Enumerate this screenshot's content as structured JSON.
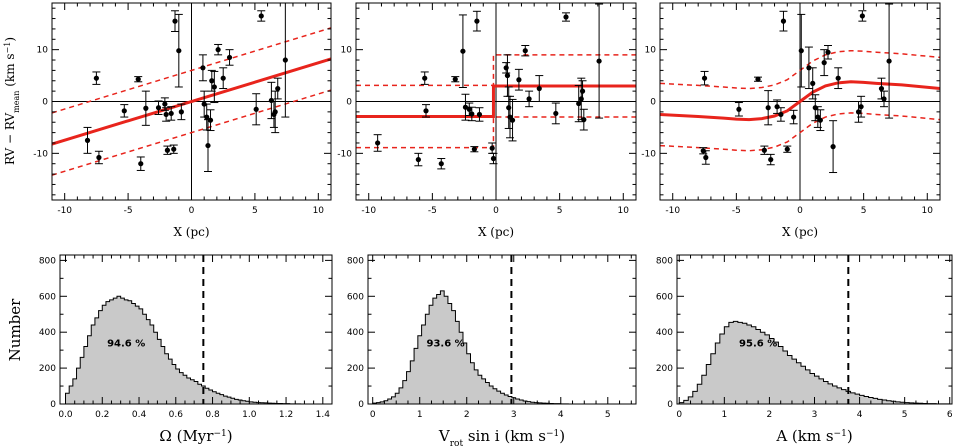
{
  "chart_data": [
    {
      "type": "scatter",
      "panel": "top-left",
      "xlabel": "X (pc)",
      "ylabel_main": "RV − RV",
      "ylabel_sub": "mean",
      "ylabel_unit_pre": " (km s",
      "ylabel_unit_sup": "−1",
      "ylabel_unit_post": ")",
      "xlim": [
        -11,
        11
      ],
      "ylim": [
        -19,
        19
      ],
      "xticks": [
        -10,
        -5,
        0,
        5,
        10
      ],
      "yticks": [
        -10,
        0,
        10
      ],
      "model": "linear",
      "model_x": [
        -11,
        11
      ],
      "model_y": [
        -8.2,
        8.2
      ],
      "band_offset": 6,
      "points": [
        {
          "x": -8.2,
          "y": -7.5,
          "err": 2.5
        },
        {
          "x": -7.5,
          "y": 4.5,
          "err": 1.2
        },
        {
          "x": -7.3,
          "y": -10.8,
          "err": 1.2
        },
        {
          "x": -5.3,
          "y": -1.8,
          "err": 1.2
        },
        {
          "x": -4.2,
          "y": 4.3,
          "err": 0.5
        },
        {
          "x": -4.0,
          "y": -12.0,
          "err": 1.3
        },
        {
          "x": -3.6,
          "y": -1.3,
          "err": 3.3
        },
        {
          "x": -2.6,
          "y": -1.2,
          "err": 1.3
        },
        {
          "x": -2.1,
          "y": -0.5,
          "err": 1.2
        },
        {
          "x": -2.0,
          "y": -2.5,
          "err": 1.3
        },
        {
          "x": -1.9,
          "y": -9.4,
          "err": 0.8
        },
        {
          "x": -1.6,
          "y": -2.3,
          "err": 1.3
        },
        {
          "x": -1.4,
          "y": -9.2,
          "err": 0.8
        },
        {
          "x": -1.3,
          "y": 15.5,
          "err": 2.0
        },
        {
          "x": -1.0,
          "y": 9.8,
          "err": 7.0
        },
        {
          "x": -0.8,
          "y": -2.0,
          "err": 1.5
        },
        {
          "x": 0.9,
          "y": 6.5,
          "err": 2.5
        },
        {
          "x": 1.0,
          "y": -0.5,
          "err": 2.5
        },
        {
          "x": 1.2,
          "y": -3.0,
          "err": 2.5
        },
        {
          "x": 1.3,
          "y": -8.5,
          "err": 5.0
        },
        {
          "x": 1.5,
          "y": -3.6,
          "err": 2.0
        },
        {
          "x": 1.6,
          "y": 4.0,
          "err": 2.0
        },
        {
          "x": 1.8,
          "y": 2.8,
          "err": 3.0
        },
        {
          "x": 2.1,
          "y": 10.0,
          "err": 1.0
        },
        {
          "x": 2.5,
          "y": 4.5,
          "err": 2.0
        },
        {
          "x": 3.0,
          "y": 8.5,
          "err": 1.5
        },
        {
          "x": 5.1,
          "y": -1.5,
          "err": 3.0
        },
        {
          "x": 5.5,
          "y": 16.5,
          "err": 1.0
        },
        {
          "x": 6.3,
          "y": 0.2,
          "err": 3.5
        },
        {
          "x": 6.5,
          "y": -2.5,
          "err": 2.5
        },
        {
          "x": 6.6,
          "y": -2.0,
          "err": 4.0
        },
        {
          "x": 6.8,
          "y": 2.5,
          "err": 2.0
        },
        {
          "x": 7.4,
          "y": 8.0,
          "err": 11.0
        }
      ]
    },
    {
      "type": "scatter",
      "panel": "top-middle",
      "xlabel": "X (pc)",
      "xlim": [
        -11,
        11
      ],
      "ylim": [
        -19,
        19
      ],
      "xticks": [
        -10,
        -5,
        0,
        5,
        10
      ],
      "yticks": [
        -10,
        0,
        10
      ],
      "model": "step",
      "step_low": -2.9,
      "step_high": 3.0,
      "step_x": -0.2,
      "band_offset": 6,
      "points": [
        {
          "x": -9.3,
          "y": -8.0,
          "err": 1.6
        },
        {
          "x": -6.1,
          "y": -11.2,
          "err": 1.2
        },
        {
          "x": -5.6,
          "y": 4.5,
          "err": 1.2
        },
        {
          "x": -5.5,
          "y": -1.8,
          "err": 1.2
        },
        {
          "x": -4.3,
          "y": -12.0,
          "err": 1.0
        },
        {
          "x": -3.2,
          "y": 4.3,
          "err": 0.5
        },
        {
          "x": -2.6,
          "y": 9.7,
          "err": 7.0
        },
        {
          "x": -2.4,
          "y": -1.1,
          "err": 2.5
        },
        {
          "x": -2.1,
          "y": -1.5,
          "err": 1.2
        },
        {
          "x": -1.9,
          "y": -2.4,
          "err": 1.3
        },
        {
          "x": -1.7,
          "y": -9.2,
          "err": 0.5
        },
        {
          "x": -1.5,
          "y": 15.5,
          "err": 1.9
        },
        {
          "x": -1.3,
          "y": -2.5,
          "err": 1.3
        },
        {
          "x": -0.3,
          "y": -9.0,
          "err": 1.0
        },
        {
          "x": -0.2,
          "y": -11.0,
          "err": 1.0
        },
        {
          "x": 0.8,
          "y": 6.5,
          "err": 1.0
        },
        {
          "x": 0.9,
          "y": 5.0,
          "err": 4.0
        },
        {
          "x": 1.0,
          "y": -1.2,
          "err": 4.0
        },
        {
          "x": 1.1,
          "y": -3.0,
          "err": 4.0
        },
        {
          "x": 1.3,
          "y": -3.6,
          "err": 4.0
        },
        {
          "x": 1.8,
          "y": 4.2,
          "err": 2.0
        },
        {
          "x": 2.3,
          "y": 9.8,
          "err": 1.0
        },
        {
          "x": 2.6,
          "y": 0.5,
          "err": 1.5
        },
        {
          "x": 3.4,
          "y": 2.5,
          "err": 2.5
        },
        {
          "x": 4.7,
          "y": -2.3,
          "err": 2.0
        },
        {
          "x": 5.5,
          "y": 16.3,
          "err": 0.8
        },
        {
          "x": 6.5,
          "y": -0.4,
          "err": 3.5
        },
        {
          "x": 6.7,
          "y": 0.5,
          "err": 4.0
        },
        {
          "x": 6.8,
          "y": 2.0,
          "err": 2.0
        },
        {
          "x": 6.9,
          "y": -3.5,
          "err": 2.0
        },
        {
          "x": 8.1,
          "y": 7.8,
          "err": 11.0
        }
      ]
    },
    {
      "type": "scatter",
      "panel": "top-right",
      "xlabel": "X (pc)",
      "xlim": [
        -11,
        11
      ],
      "ylim": [
        -19,
        19
      ],
      "xticks": [
        -10,
        -5,
        0,
        5,
        10
      ],
      "yticks": [
        -10,
        0,
        10
      ],
      "model": "curve",
      "model_x": [
        -11,
        -8,
        -6,
        -5,
        -4,
        -3,
        -2,
        -1,
        0,
        1,
        2,
        3,
        4,
        5,
        6,
        8,
        11
      ],
      "model_y": [
        -2.5,
        -2.9,
        -3.2,
        -3.4,
        -3.5,
        -3.3,
        -2.8,
        -1.8,
        0.0,
        1.8,
        3.0,
        3.6,
        3.8,
        3.7,
        3.5,
        3.2,
        2.5
      ],
      "band_offset": 6,
      "points": [
        {
          "x": -7.5,
          "y": 4.5,
          "err": 1.3
        },
        {
          "x": -7.4,
          "y": -10.8,
          "err": 1.3
        },
        {
          "x": -7.6,
          "y": -9.5,
          "err": 0.6
        },
        {
          "x": -4.8,
          "y": -1.5,
          "err": 1.3
        },
        {
          "x": -3.3,
          "y": 4.3,
          "err": 0.4
        },
        {
          "x": -2.8,
          "y": -9.4,
          "err": 0.8
        },
        {
          "x": -2.5,
          "y": -1.2,
          "err": 3.3
        },
        {
          "x": -2.3,
          "y": -11.2,
          "err": 1.0
        },
        {
          "x": -1.8,
          "y": -1.0,
          "err": 1.3
        },
        {
          "x": -1.5,
          "y": -2.5,
          "err": 1.3
        },
        {
          "x": -1.3,
          "y": 15.5,
          "err": 1.9
        },
        {
          "x": -1.0,
          "y": -9.2,
          "err": 0.6
        },
        {
          "x": -0.5,
          "y": -3.0,
          "err": 1.3
        },
        {
          "x": 0.1,
          "y": 9.8,
          "err": 7.0
        },
        {
          "x": 0.7,
          "y": 6.5,
          "err": 4.0
        },
        {
          "x": 1.0,
          "y": 3.5,
          "err": 3.0
        },
        {
          "x": 1.2,
          "y": -1.2,
          "err": 2.5
        },
        {
          "x": 1.4,
          "y": -3.0,
          "err": 2.0
        },
        {
          "x": 1.6,
          "y": -3.6,
          "err": 2.0
        },
        {
          "x": 1.9,
          "y": 7.5,
          "err": 2.5
        },
        {
          "x": 2.2,
          "y": 9.5,
          "err": 1.3
        },
        {
          "x": 2.6,
          "y": -8.7,
          "err": 5.0
        },
        {
          "x": 3.0,
          "y": 4.5,
          "err": 2.0
        },
        {
          "x": 4.6,
          "y": -2.0,
          "err": 2.0
        },
        {
          "x": 4.8,
          "y": -1.0,
          "err": 2.0
        },
        {
          "x": 4.9,
          "y": 16.5,
          "err": 1.0
        },
        {
          "x": 6.4,
          "y": 2.5,
          "err": 2.0
        },
        {
          "x": 6.6,
          "y": 0.5,
          "err": 1.5
        },
        {
          "x": 7.0,
          "y": 7.8,
          "err": 11.0
        }
      ]
    },
    {
      "type": "histogram",
      "panel": "bottom-left",
      "ylabel": "Number",
      "xlabel_text": "Ω (Myr",
      "xlabel_sup": "−1",
      "xlabel_post": ")",
      "xlim": [
        -0.03,
        1.45
      ],
      "ylim": [
        0,
        830
      ],
      "xticks": [
        0.0,
        0.2,
        0.4,
        0.6,
        0.8,
        1.0,
        1.2,
        1.4
      ],
      "xtick_labels": [
        "0.0",
        "0.2",
        "0.4",
        "0.6",
        "0.8",
        "1.0",
        "1.2",
        "1.4"
      ],
      "yticks": [
        0,
        200,
        400,
        600,
        800
      ],
      "bin_start": 0.0,
      "bin_width": 0.02,
      "counts": [
        60,
        100,
        140,
        200,
        260,
        320,
        380,
        440,
        480,
        520,
        550,
        570,
        580,
        590,
        600,
        590,
        580,
        575,
        560,
        545,
        530,
        500,
        470,
        440,
        400,
        360,
        320,
        280,
        250,
        220,
        195,
        175,
        160,
        145,
        135,
        125,
        110,
        100,
        88,
        78,
        68,
        60,
        52,
        44,
        38,
        32,
        26,
        22,
        18,
        15,
        12,
        10,
        8,
        7,
        6,
        5,
        4,
        3,
        3,
        2,
        2,
        1,
        1,
        1
      ],
      "vline": 0.75,
      "annotation": "94.6 %",
      "annotation_x": 0.33,
      "annotation_y": 320
    },
    {
      "type": "histogram",
      "panel": "bottom-middle",
      "xlabel_text": "V",
      "xlabel_sub": "rot",
      "xlabel_post": " sin i (km s",
      "xlabel_sup": "−1",
      "xlabel_end": ")",
      "xlim": [
        -0.1,
        5.6
      ],
      "ylim": [
        0,
        830
      ],
      "xticks": [
        0,
        1,
        2,
        3,
        4,
        5
      ],
      "xtick_labels": [
        "0",
        "1",
        "2",
        "3",
        "4",
        "5"
      ],
      "yticks": [
        0,
        200,
        400,
        600,
        800
      ],
      "bin_start": 0.0,
      "bin_width": 0.08,
      "counts": [
        5,
        8,
        12,
        18,
        28,
        40,
        60,
        90,
        130,
        180,
        240,
        310,
        380,
        440,
        500,
        550,
        590,
        610,
        630,
        600,
        560,
        520,
        460,
        400,
        340,
        280,
        230,
        190,
        160,
        140,
        120,
        100,
        85,
        72,
        60,
        50,
        42,
        35,
        28,
        22,
        17,
        13,
        10,
        8,
        6,
        5,
        4,
        3,
        2,
        2,
        1,
        1
      ],
      "vline": 2.95,
      "annotation": "93.6 %",
      "annotation_x": 1.55,
      "annotation_y": 320
    },
    {
      "type": "histogram",
      "panel": "bottom-right",
      "xlabel_text": "A (km s",
      "xlabel_sup": "−1",
      "xlabel_post": ")",
      "xlim": [
        -0.05,
        6.05
      ],
      "ylim": [
        0,
        830
      ],
      "xticks": [
        0,
        1,
        2,
        3,
        4,
        5,
        6
      ],
      "xtick_labels": [
        "0",
        "1",
        "2",
        "3",
        "4",
        "5",
        "6"
      ],
      "yticks": [
        0,
        200,
        400,
        600,
        800
      ],
      "bin_start": 0.0,
      "bin_width": 0.1,
      "counts": [
        8,
        20,
        40,
        70,
        110,
        160,
        220,
        280,
        340,
        390,
        430,
        455,
        460,
        455,
        450,
        440,
        430,
        415,
        400,
        385,
        365,
        345,
        320,
        295,
        270,
        250,
        230,
        210,
        190,
        170,
        155,
        140,
        125,
        112,
        100,
        90,
        80,
        70,
        62,
        55,
        48,
        42,
        36,
        31,
        26,
        22,
        18,
        15,
        12,
        10,
        8,
        6,
        5,
        4,
        3,
        2,
        2,
        1,
        1,
        1
      ],
      "vline": 3.75,
      "annotation": "95.6 %",
      "annotation_x": 1.75,
      "annotation_y": 320
    }
  ]
}
